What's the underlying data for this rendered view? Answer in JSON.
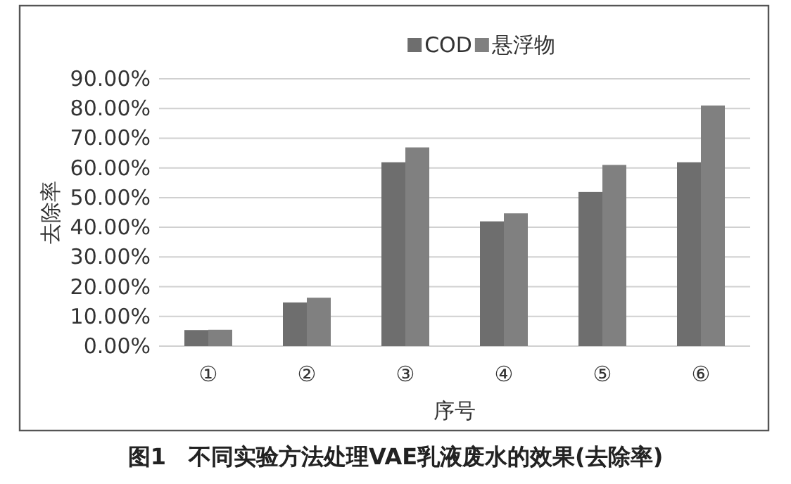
{
  "chart_data": {
    "type": "bar",
    "title": "图1　不同实验方法处理VAE乳液废水的效果(去除率)",
    "xlabel": "序号",
    "ylabel": "去除率",
    "categories": [
      "①",
      "②",
      "③",
      "④",
      "⑤",
      "⑥"
    ],
    "series": [
      {
        "name": "COD",
        "color": "#6e6e6e",
        "values": [
          5.4,
          14.7,
          61.9,
          42.0,
          51.9,
          61.9
        ]
      },
      {
        "name": "悬浮物",
        "color": "#808080",
        "values": [
          5.5,
          16.3,
          66.9,
          44.7,
          61.0,
          81.0
        ]
      }
    ],
    "ylim": [
      0,
      90
    ],
    "yticks": [
      {
        "value": 0,
        "label": "0.00%"
      },
      {
        "value": 10,
        "label": "10.00%"
      },
      {
        "value": 20,
        "label": "20.00%"
      },
      {
        "value": 30,
        "label": "30.00%"
      },
      {
        "value": 40,
        "label": "40.00%"
      },
      {
        "value": 50,
        "label": "50.00%"
      },
      {
        "value": 60,
        "label": "60.00%"
      },
      {
        "value": 70,
        "label": "70.00%"
      },
      {
        "value": 80,
        "label": "80.00%"
      },
      {
        "value": 90,
        "label": "90.00%"
      }
    ],
    "grid": "y",
    "legend": "top"
  }
}
